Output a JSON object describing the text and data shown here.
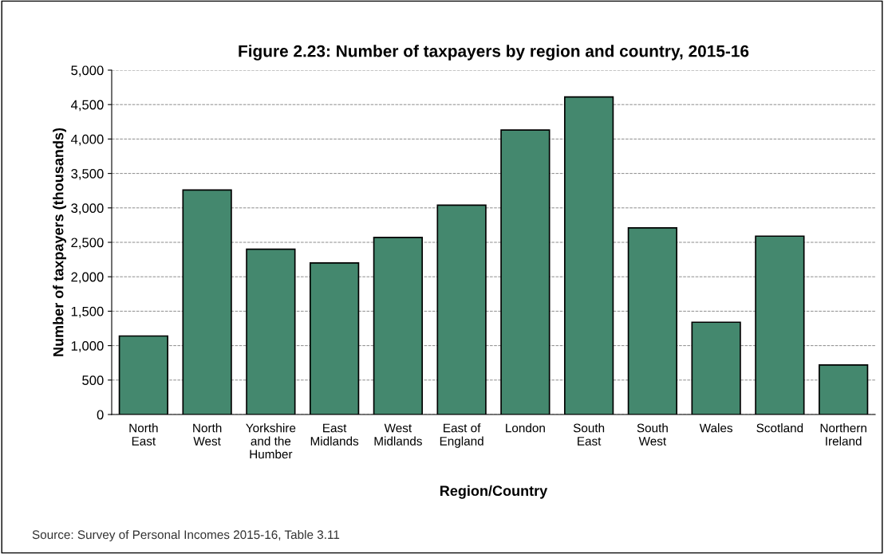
{
  "chart_data": {
    "type": "bar",
    "title": "Figure 2.23: Number of taxpayers by region and country, 2015-16",
    "xlabel": "Region/Country",
    "ylabel": "Number of taxpayers (thousands)",
    "categories": [
      "North\nEast",
      "North\nWest",
      "Yorkshire\nand the\nHumber",
      "East\nMidlands",
      "West\nMidlands",
      "East of\nEngland",
      "London",
      "South\nEast",
      "South\nWest",
      "Wales",
      "Scotland",
      "Northern\nIreland"
    ],
    "values": [
      1140,
      3260,
      2400,
      2200,
      2570,
      3040,
      4130,
      4610,
      2710,
      1340,
      2590,
      720
    ],
    "color": "#44886e",
    "ylim": [
      0,
      5000
    ],
    "yticks": [
      {
        "value": 0,
        "label": "0"
      },
      {
        "value": 500,
        "label": "500"
      },
      {
        "value": 1000,
        "label": "1,000"
      },
      {
        "value": 1500,
        "label": "1,500"
      },
      {
        "value": 2000,
        "label": "2,000"
      },
      {
        "value": 2500,
        "label": "2,500"
      },
      {
        "value": 3000,
        "label": "3,000"
      },
      {
        "value": 3500,
        "label": "3,500"
      },
      {
        "value": 4000,
        "label": "4,000"
      },
      {
        "value": 4500,
        "label": "4,500"
      },
      {
        "value": 5000,
        "label": "5,000"
      }
    ],
    "grid": "y",
    "annotations": [
      "Source: Survey of Personal Incomes 2015-16, Table 3.11"
    ]
  }
}
